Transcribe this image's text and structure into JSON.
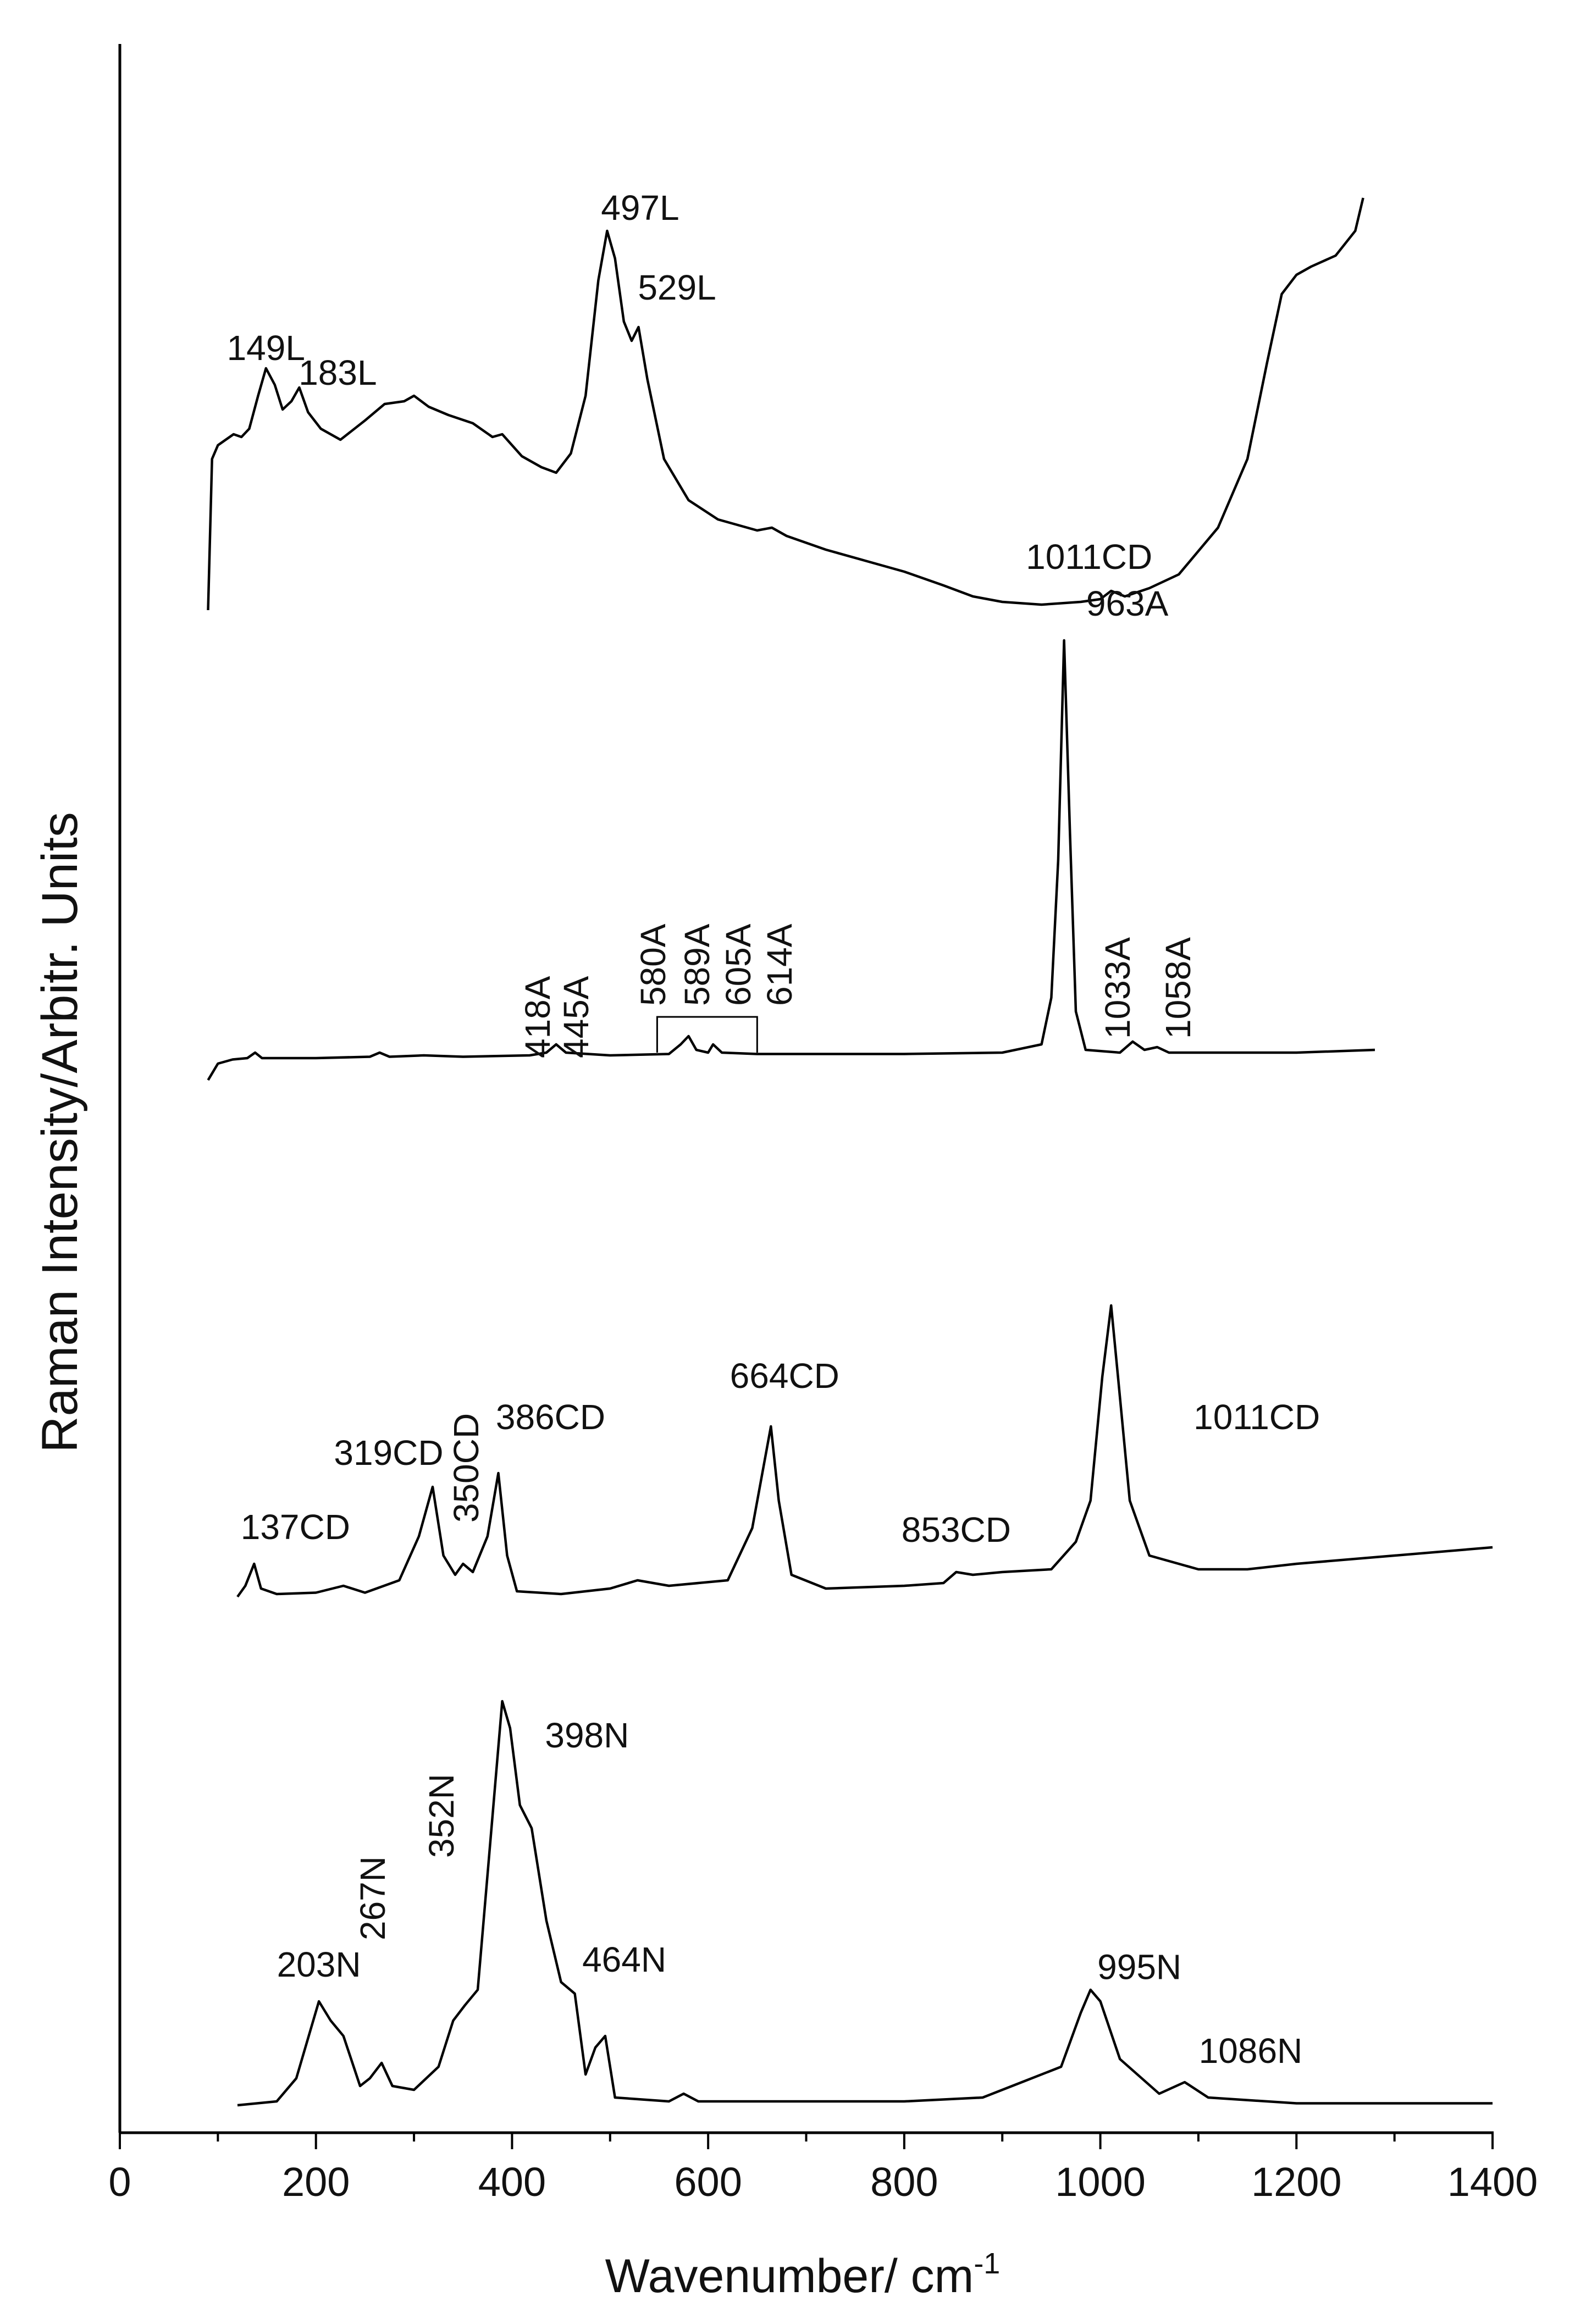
{
  "chart_data": {
    "type": "line",
    "xlabel": "Wavenumber/ cm",
    "xlabel_sup": "-1",
    "ylabel": "Raman Intensity/Arbitr. Units",
    "xlim": [
      0,
      1400
    ],
    "x_ticks": [
      0,
      200,
      400,
      600,
      800,
      1000,
      1200,
      1400
    ],
    "x_minor_step": 100,
    "y_ticks": [],
    "grid": false,
    "legend": "none",
    "stacked_offset": true,
    "series": [
      {
        "peaks": [
          {
            "label": "149L",
            "x": 149,
            "h": 0.33
          },
          {
            "label": "183L",
            "x": 183,
            "h": 0.25
          },
          {
            "label": "497L",
            "x": 497,
            "h": 1.0
          },
          {
            "label": "529L",
            "x": 529,
            "h": 0.6
          },
          {
            "label": "1011CD",
            "x": 1011,
            "h": 0.05
          }
        ],
        "points": [
          [
            90,
            0
          ],
          [
            94,
            0.55
          ],
          [
            100,
            0.6
          ],
          [
            108,
            0.62
          ],
          [
            116,
            0.64
          ],
          [
            124,
            0.63
          ],
          [
            132,
            0.66
          ],
          [
            141,
            0.78
          ],
          [
            149,
            0.88
          ],
          [
            158,
            0.82
          ],
          [
            166,
            0.73
          ],
          [
            175,
            0.76
          ],
          [
            183,
            0.81
          ],
          [
            192,
            0.72
          ],
          [
            205,
            0.66
          ],
          [
            225,
            0.62
          ],
          [
            250,
            0.69
          ],
          [
            270,
            0.75
          ],
          [
            290,
            0.76
          ],
          [
            300,
            0.78
          ],
          [
            315,
            0.74
          ],
          [
            335,
            0.71
          ],
          [
            360,
            0.68
          ],
          [
            380,
            0.63
          ],
          [
            390,
            0.64
          ],
          [
            410,
            0.56
          ],
          [
            430,
            0.52
          ],
          [
            445,
            0.5
          ],
          [
            460,
            0.57
          ],
          [
            475,
            0.78
          ],
          [
            488,
            1.2
          ],
          [
            497,
            1.38
          ],
          [
            505,
            1.28
          ],
          [
            514,
            1.05
          ],
          [
            522,
            0.98
          ],
          [
            529,
            1.03
          ],
          [
            538,
            0.84
          ],
          [
            555,
            0.55
          ],
          [
            580,
            0.4
          ],
          [
            610,
            0.33
          ],
          [
            650,
            0.29
          ],
          [
            665,
            0.3
          ],
          [
            680,
            0.27
          ],
          [
            720,
            0.22
          ],
          [
            760,
            0.18
          ],
          [
            800,
            0.14
          ],
          [
            840,
            0.09
          ],
          [
            870,
            0.05
          ],
          [
            900,
            0.03
          ],
          [
            940,
            0.02
          ],
          [
            980,
            0.03
          ],
          [
            1000,
            0.04
          ],
          [
            1011,
            0.07
          ],
          [
            1025,
            0.05
          ],
          [
            1050,
            0.08
          ],
          [
            1080,
            0.13
          ],
          [
            1120,
            0.3
          ],
          [
            1150,
            0.55
          ],
          [
            1170,
            0.9
          ],
          [
            1185,
            1.15
          ],
          [
            1200,
            1.22
          ],
          [
            1215,
            1.25
          ],
          [
            1240,
            1.29
          ],
          [
            1260,
            1.38
          ],
          [
            1268,
            1.5
          ]
        ]
      },
      {
        "peaks": [
          {
            "label": "418A",
            "x": 418,
            "h": 0.01
          },
          {
            "label": "445A",
            "x": 445,
            "h": 0.03
          },
          {
            "label": "580A",
            "x": 580,
            "h": 0.05
          },
          {
            "label": "589A",
            "x": 589,
            "h": 0.03
          },
          {
            "label": "605A",
            "x": 605,
            "h": 0.02
          },
          {
            "label": "614A",
            "x": 614,
            "h": 0.01
          },
          {
            "label": "963A",
            "x": 963,
            "h": 1.0
          },
          {
            "label": "1033A",
            "x": 1033,
            "h": 0.03
          },
          {
            "label": "1058A",
            "x": 1058,
            "h": 0.02
          }
        ],
        "points": [
          [
            90,
            0
          ],
          [
            100,
            0.06
          ],
          [
            115,
            0.075
          ],
          [
            130,
            0.08
          ],
          [
            138,
            0.1
          ],
          [
            145,
            0.08
          ],
          [
            200,
            0.08
          ],
          [
            255,
            0.085
          ],
          [
            265,
            0.1
          ],
          [
            275,
            0.085
          ],
          [
            310,
            0.09
          ],
          [
            350,
            0.085
          ],
          [
            418,
            0.09
          ],
          [
            435,
            0.1
          ],
          [
            445,
            0.13
          ],
          [
            455,
            0.1
          ],
          [
            500,
            0.09
          ],
          [
            560,
            0.095
          ],
          [
            572,
            0.13
          ],
          [
            580,
            0.16
          ],
          [
            588,
            0.11
          ],
          [
            600,
            0.1
          ],
          [
            605,
            0.13
          ],
          [
            614,
            0.1
          ],
          [
            650,
            0.095
          ],
          [
            800,
            0.095
          ],
          [
            900,
            0.1
          ],
          [
            940,
            0.13
          ],
          [
            950,
            0.3
          ],
          [
            957,
            0.8
          ],
          [
            963,
            1.6
          ],
          [
            969,
            0.9
          ],
          [
            975,
            0.25
          ],
          [
            985,
            0.11
          ],
          [
            1020,
            0.1
          ],
          [
            1033,
            0.14
          ],
          [
            1045,
            0.11
          ],
          [
            1058,
            0.12
          ],
          [
            1070,
            0.1
          ],
          [
            1200,
            0.1
          ],
          [
            1280,
            0.11
          ]
        ]
      },
      {
        "peaks": [
          {
            "label": "137CD",
            "x": 137,
            "h": 0.13
          },
          {
            "label": "319CD",
            "x": 319,
            "h": 0.38
          },
          {
            "label": "350CD",
            "x": 350,
            "h": 0.08
          },
          {
            "label": "386CD",
            "x": 386,
            "h": 0.43
          },
          {
            "label": "664CD",
            "x": 664,
            "h": 0.6
          },
          {
            "label": "853CD",
            "x": 853,
            "h": 0.06
          },
          {
            "label": "1011CD",
            "x": 1011,
            "h": 1.0
          }
        ],
        "points": [
          [
            120,
            0
          ],
          [
            128,
            0.04
          ],
          [
            137,
            0.12
          ],
          [
            144,
            0.03
          ],
          [
            160,
            0.01
          ],
          [
            200,
            0.015
          ],
          [
            228,
            0.04
          ],
          [
            250,
            0.015
          ],
          [
            285,
            0.06
          ],
          [
            305,
            0.22
          ],
          [
            319,
            0.4
          ],
          [
            330,
            0.15
          ],
          [
            342,
            0.08
          ],
          [
            350,
            0.12
          ],
          [
            360,
            0.09
          ],
          [
            375,
            0.22
          ],
          [
            386,
            0.45
          ],
          [
            395,
            0.15
          ],
          [
            405,
            0.02
          ],
          [
            450,
            0.01
          ],
          [
            500,
            0.03
          ],
          [
            528,
            0.06
          ],
          [
            560,
            0.04
          ],
          [
            620,
            0.06
          ],
          [
            645,
            0.25
          ],
          [
            664,
            0.62
          ],
          [
            672,
            0.35
          ],
          [
            685,
            0.08
          ],
          [
            720,
            0.03
          ],
          [
            800,
            0.04
          ],
          [
            840,
            0.05
          ],
          [
            853,
            0.09
          ],
          [
            870,
            0.08
          ],
          [
            900,
            0.09
          ],
          [
            950,
            0.1
          ],
          [
            975,
            0.2
          ],
          [
            990,
            0.35
          ],
          [
            1002,
            0.8
          ],
          [
            1011,
            1.06
          ],
          [
            1018,
            0.8
          ],
          [
            1030,
            0.35
          ],
          [
            1050,
            0.15
          ],
          [
            1100,
            0.1
          ],
          [
            1150,
            0.1
          ],
          [
            1200,
            0.12
          ],
          [
            1300,
            0.15
          ],
          [
            1400,
            0.18
          ]
        ]
      },
      {
        "peaks": [
          {
            "label": "203N",
            "x": 203,
            "h": 0.28
          },
          {
            "label": "267N",
            "x": 267,
            "h": 0.1
          },
          {
            "label": "352N",
            "x": 352,
            "h": 0.25
          },
          {
            "label": "398N",
            "x": 398,
            "h": 1.0
          },
          {
            "label": "464N",
            "x": 464,
            "h": 0.27
          },
          {
            "label": "995N",
            "x": 995,
            "h": 0.27
          },
          {
            "label": "1086N",
            "x": 1086,
            "h": 0.05
          }
        ],
        "points": [
          [
            120,
            0
          ],
          [
            160,
            0.01
          ],
          [
            180,
            0.07
          ],
          [
            203,
            0.27
          ],
          [
            215,
            0.22
          ],
          [
            228,
            0.18
          ],
          [
            245,
            0.05
          ],
          [
            255,
            0.07
          ],
          [
            267,
            0.11
          ],
          [
            278,
            0.05
          ],
          [
            300,
            0.04
          ],
          [
            325,
            0.1
          ],
          [
            340,
            0.22
          ],
          [
            352,
            0.26
          ],
          [
            365,
            0.3
          ],
          [
            380,
            0.75
          ],
          [
            390,
            1.05
          ],
          [
            398,
            0.98
          ],
          [
            408,
            0.78
          ],
          [
            420,
            0.72
          ],
          [
            435,
            0.48
          ],
          [
            450,
            0.32
          ],
          [
            464,
            0.29
          ],
          [
            475,
            0.08
          ],
          [
            485,
            0.15
          ],
          [
            495,
            0.18
          ],
          [
            505,
            0.02
          ],
          [
            560,
            0.01
          ],
          [
            575,
            0.03
          ],
          [
            590,
            0.01
          ],
          [
            650,
            0.01
          ],
          [
            800,
            0.01
          ],
          [
            880,
            0.02
          ],
          [
            920,
            0.06
          ],
          [
            960,
            0.1
          ],
          [
            980,
            0.24
          ],
          [
            990,
            0.3
          ],
          [
            1000,
            0.27
          ],
          [
            1020,
            0.12
          ],
          [
            1060,
            0.03
          ],
          [
            1086,
            0.06
          ],
          [
            1110,
            0.02
          ],
          [
            1200,
            0.005
          ],
          [
            1300,
            0.005
          ],
          [
            1400,
            0.005
          ]
        ]
      }
    ]
  }
}
